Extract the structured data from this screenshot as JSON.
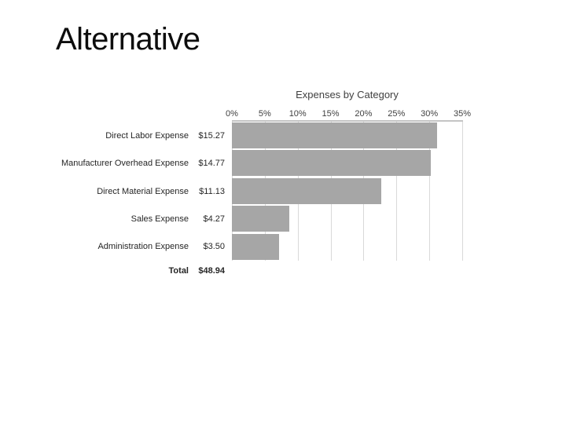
{
  "slide": {
    "title": "Alternative",
    "background_color": "#ffffff"
  },
  "chart_data": {
    "type": "bar",
    "orientation": "horizontal",
    "title": "Expenses by Category",
    "categories": [
      "Direct Labor Expense",
      "Manufacturer Overhead Expense",
      "Direct Material Expense",
      "Sales Expense",
      "Administration Expense"
    ],
    "value_labels": [
      "$15.27",
      "$14.77",
      "$11.13",
      "$4.27",
      "$3.50"
    ],
    "values_dollars": [
      15.27,
      14.77,
      11.13,
      4.27,
      3.5
    ],
    "values_pct_of_total": [
      31.2,
      30.2,
      22.7,
      8.7,
      7.2
    ],
    "total": {
      "label": "Total",
      "value_label": "$48.94",
      "value_dollars": 48.94
    },
    "x_axis": {
      "ticks": [
        "0%",
        "5%",
        "10%",
        "15%",
        "20%",
        "25%",
        "30%",
        "35%"
      ],
      "min": 0,
      "max": 35,
      "position": "top"
    },
    "grid": true,
    "legend": false,
    "colors": {
      "bar": "#a6a6a6",
      "gridline": "#d9d9d9",
      "axis_line": "#c4c4c4",
      "chart_text": "#404040",
      "label_text": "#262626"
    }
  }
}
